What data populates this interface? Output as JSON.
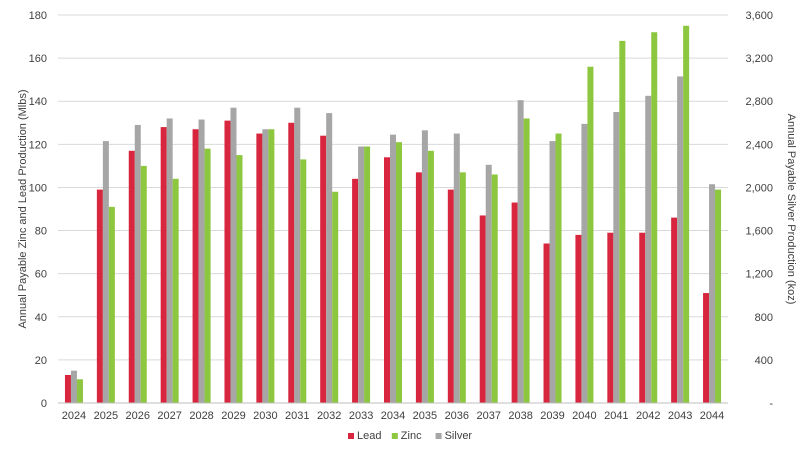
{
  "chart_data": {
    "type": "bar",
    "categories": [
      "2024",
      "2025",
      "2026",
      "2027",
      "2028",
      "2029",
      "2030",
      "2031",
      "2032",
      "2033",
      "2034",
      "2035",
      "2036",
      "2037",
      "2038",
      "2039",
      "2040",
      "2041",
      "2042",
      "2043",
      "2044"
    ],
    "series": [
      {
        "name": "Lead",
        "axis": "left",
        "color": "#d7263d",
        "values": [
          13,
          99,
          117,
          128,
          127,
          131,
          125,
          130,
          124,
          104,
          114,
          107,
          99,
          87,
          93,
          74,
          78,
          79,
          79,
          86,
          51
        ]
      },
      {
        "name": "Zinc",
        "axis": "left",
        "color": "#8dc63f",
        "values": [
          11,
          91,
          110,
          104,
          118,
          115,
          127,
          113,
          98,
          119,
          121,
          117,
          107,
          106,
          132,
          125,
          156,
          168,
          172,
          175,
          99
        ]
      },
      {
        "name": "Silver",
        "axis": "right",
        "color": "#a6a6a6",
        "values": [
          300,
          2430,
          2580,
          2640,
          2630,
          2740,
          2540,
          2740,
          2690,
          2380,
          2490,
          2530,
          2500,
          2210,
          2810,
          2430,
          2590,
          2700,
          2850,
          3030,
          2030
        ]
      }
    ],
    "y_left": {
      "label": "Annual Payable Zinc and Lead Production (Mlbs)",
      "min": 0,
      "max": 180,
      "ticks": [
        "0",
        "20",
        "40",
        "60",
        "80",
        "100",
        "120",
        "140",
        "160",
        "180"
      ]
    },
    "y_right": {
      "label": "Annual Payable Silver Production (koz)",
      "min": 0,
      "max": 3600,
      "ticks": [
        "-",
        "400",
        "800",
        "1,200",
        "1,600",
        "2,000",
        "2,400",
        "2,800",
        "3,200",
        "3,600"
      ]
    },
    "grid": true,
    "legend_position": "bottom"
  }
}
